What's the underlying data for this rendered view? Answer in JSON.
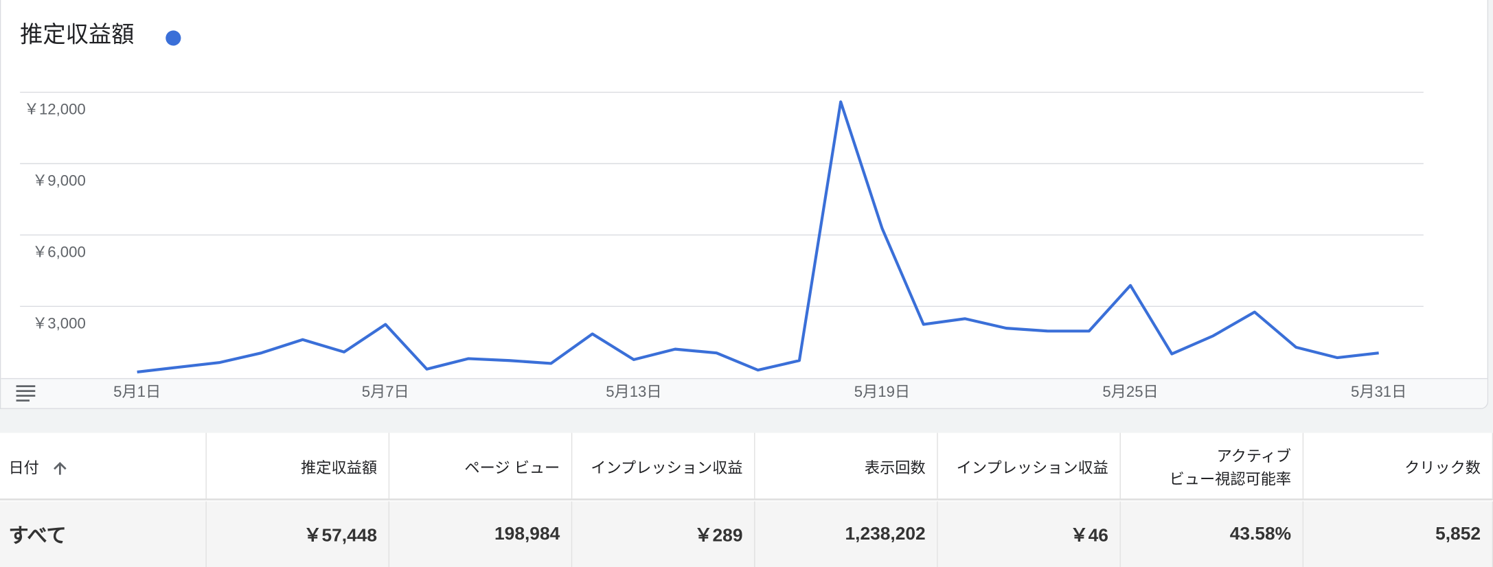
{
  "chart_data": {
    "type": "line",
    "title": "推定収益額",
    "color": "#3a6fd8",
    "categories": [
      "5月1日",
      null,
      null,
      null,
      null,
      null,
      "5月7日",
      null,
      null,
      null,
      null,
      null,
      "5月13日",
      null,
      null,
      null,
      null,
      null,
      "5月19日",
      null,
      null,
      null,
      null,
      null,
      "5月25日",
      null,
      null,
      null,
      null,
      null,
      "5月31日"
    ],
    "values": [
      240,
      440,
      640,
      1040,
      1600,
      1080,
      2240,
      360,
      800,
      720,
      600,
      1840,
      760,
      1200,
      1040,
      320,
      720,
      11600,
      6280,
      2240,
      2480,
      2080,
      1960,
      1960,
      3880,
      1000,
      1760,
      2760,
      1280,
      840,
      1040
    ],
    "ylim": [
      0,
      12000
    ],
    "yticks": [
      {
        "value": 3000,
        "label": "￥3,000"
      },
      {
        "value": 6000,
        "label": "￥6,000"
      },
      {
        "value": 9000,
        "label": "￥9,000"
      },
      {
        "value": 12000,
        "label": "￥12,000"
      }
    ],
    "grid": true
  },
  "table": {
    "headers": [
      "日付",
      "推定収益額",
      "ページ ビュー",
      "インプレッション収益",
      "表示回数",
      "インプレッション収益",
      "アクティブ\nビュー視認可能率",
      "クリック数"
    ],
    "rows": [
      [
        "すべて",
        "￥57,448",
        "198,984",
        "￥289",
        "1,238,202",
        "￥46",
        "43.58%",
        "5,852"
      ]
    ]
  }
}
